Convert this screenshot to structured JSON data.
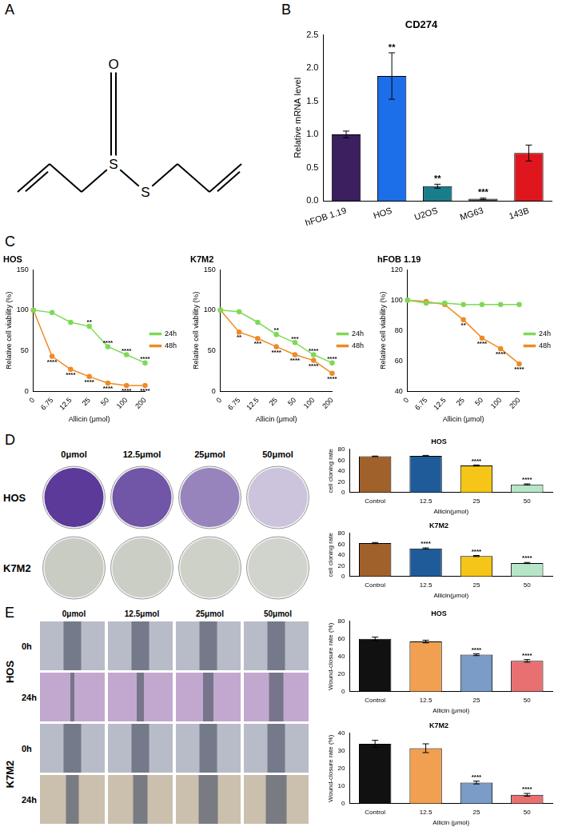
{
  "panel_letters": [
    "A",
    "B",
    "C",
    "D",
    "E"
  ],
  "structure": {
    "atoms": [
      "O",
      "S",
      "S"
    ]
  },
  "colony_images": {
    "columns": [
      "0μmol",
      "12.5μmol",
      "25μmol",
      "50μmol"
    ],
    "rows": [
      "HOS",
      "K7M2"
    ]
  },
  "wound_images": {
    "columns": [
      "0μmol",
      "12.5μmol",
      "25μmol",
      "50μmol"
    ],
    "cell_lines": [
      "HOS",
      "K7M2"
    ],
    "times": [
      "0h",
      "24h"
    ]
  },
  "chart_data": [
    {
      "type": "bar",
      "title": "CD274",
      "y_label": "Relative mRNA level",
      "categories": [
        "hFOB 1.19",
        "HOS",
        "U2OS",
        "MG63",
        "143B"
      ],
      "values": [
        1.0,
        1.88,
        0.22,
        0.03,
        0.72
      ],
      "errors": [
        0.05,
        0.35,
        0.03,
        0.01,
        0.12
      ],
      "annotations": [
        null,
        "**",
        "**",
        "***",
        null
      ],
      "colors": [
        "#3b1f5f",
        "#1c6fe8",
        "#1a7d8c",
        "#4a4a4a",
        "#e0161f"
      ],
      "ylim": [
        0,
        2.5
      ],
      "yticks": [
        {
          "value": 0,
          "label": "0.0"
        },
        {
          "value": 0.5,
          "label": "0.5"
        },
        {
          "value": 1,
          "label": "1.0"
        },
        {
          "value": 1.5,
          "label": "1.5"
        },
        {
          "value": 2,
          "label": "2.0"
        },
        {
          "value": 2.5,
          "label": "2.5"
        }
      ],
      "grid": false
    },
    {
      "type": "line",
      "title": "HOS",
      "x_label": "Allicin (μmol)",
      "y_label": "Relative cell viability (%)",
      "categories": [
        0,
        6.75,
        12.5,
        25,
        50,
        100,
        200
      ],
      "series": [
        {
          "name": "24h",
          "color": "#7ed957",
          "marker": "circle",
          "values": [
            100,
            97,
            85,
            80,
            55,
            45,
            35
          ],
          "annotations": [
            null,
            null,
            null,
            "**",
            "****",
            "****",
            "****"
          ]
        },
        {
          "name": "48h",
          "color": "#f08a24",
          "marker": "circle",
          "values": [
            100,
            43,
            27,
            18,
            10,
            7,
            7
          ],
          "annotations": [
            null,
            "****",
            "****",
            "****",
            "****",
            "****",
            "****"
          ]
        }
      ],
      "ylim": [
        0,
        150
      ],
      "yticks": [
        0,
        50,
        100,
        150
      ],
      "grid": false,
      "legend": "right"
    },
    {
      "type": "line",
      "title": "K7M2",
      "x_label": "Allicin (μmol)",
      "y_label": "Relative cell viability (%)",
      "categories": [
        0,
        6.75,
        12.5,
        25,
        50,
        100,
        200
      ],
      "series": [
        {
          "name": "24h",
          "color": "#7ed957",
          "marker": "circle",
          "values": [
            100,
            98,
            85,
            70,
            60,
            45,
            35
          ],
          "annotations": [
            null,
            null,
            null,
            "**",
            "***",
            "****",
            "****"
          ]
        },
        {
          "name": "48h",
          "color": "#f08a24",
          "marker": "circle",
          "values": [
            100,
            73,
            65,
            55,
            45,
            38,
            22
          ],
          "annotations": [
            null,
            "**",
            "***",
            "****",
            "****",
            "****",
            "****"
          ]
        }
      ],
      "ylim": [
        0,
        150
      ],
      "yticks": [
        0,
        50,
        100,
        150
      ],
      "grid": false,
      "legend": "right"
    },
    {
      "type": "line",
      "title": "hFOB 1.19",
      "x_label": "Allicin (μmol)",
      "y_label": "Relative cell viability (%)",
      "categories": [
        0,
        6.75,
        12.5,
        25,
        50,
        100,
        200
      ],
      "series": [
        {
          "name": "24h",
          "color": "#7ed957",
          "marker": "circle",
          "values": [
            100,
            98,
            98,
            97,
            97,
            97,
            97
          ],
          "annotations": [
            null,
            null,
            null,
            null,
            null,
            null,
            null
          ]
        },
        {
          "name": "48h",
          "color": "#f08a24",
          "marker": "circle",
          "values": [
            100,
            99,
            97,
            87,
            75,
            68,
            58
          ],
          "annotations": [
            null,
            null,
            null,
            "**",
            "****",
            "****",
            "****"
          ]
        }
      ],
      "ylim": [
        40,
        120
      ],
      "yticks": [
        40,
        60,
        80,
        100,
        120
      ],
      "grid": false,
      "legend": "right"
    },
    {
      "type": "bar",
      "title": "HOS",
      "x_label": "Allicin(μmol)",
      "y_label": "cell cloning rate",
      "categories": [
        "Control",
        "12.5",
        "25",
        "50"
      ],
      "values": [
        67,
        68,
        50,
        15
      ],
      "errors": [
        0.5,
        0.8,
        1,
        1
      ],
      "annotations": [
        null,
        null,
        "****",
        "****"
      ],
      "colors": [
        "#a0612a",
        "#1f5b99",
        "#f5c518",
        "#b5e6c8"
      ],
      "ylim": [
        0,
        80
      ],
      "yticks": [
        0,
        20,
        40,
        60,
        80
      ],
      "grid": false
    },
    {
      "type": "bar",
      "title": "K7M2",
      "x_label": "Allicin(μmol)",
      "y_label": "cell cloning rate",
      "categories": [
        "Control",
        "12.5",
        "25",
        "50"
      ],
      "values": [
        62,
        52,
        38,
        25
      ],
      "errors": [
        1,
        1,
        1,
        1
      ],
      "annotations": [
        null,
        "****",
        "****",
        "****"
      ],
      "colors": [
        "#a0612a",
        "#1f5b99",
        "#f5c518",
        "#b5e6c8"
      ],
      "ylim": [
        0,
        80
      ],
      "yticks": [
        0,
        20,
        40,
        60,
        80
      ],
      "grid": false
    },
    {
      "type": "bar",
      "title": "HOS",
      "x_label": "Allicin (μmol)",
      "y_label": "Wound-closure rate (%)",
      "categories": [
        "Control",
        "12.5",
        "25",
        "50"
      ],
      "values": [
        60,
        57,
        42,
        35
      ],
      "errors": [
        2,
        1.5,
        1,
        1.5
      ],
      "annotations": [
        null,
        null,
        "****",
        "****"
      ],
      "colors": [
        "#111111",
        "#f0a050",
        "#7a9cc6",
        "#e87070"
      ],
      "ylim": [
        0,
        80
      ],
      "yticks": [
        0,
        20,
        40,
        60,
        80
      ],
      "grid": false
    },
    {
      "type": "bar",
      "title": "K7M2",
      "x_label": "Allicin (μmol)",
      "y_label": "Wound-closure rate (%)",
      "categories": [
        "Control",
        "12.5",
        "25",
        "50"
      ],
      "values": [
        34,
        31.5,
        12,
        5
      ],
      "errors": [
        2,
        2.5,
        0.8,
        0.8
      ],
      "annotations": [
        null,
        null,
        "****",
        "****"
      ],
      "colors": [
        "#111111",
        "#f0a050",
        "#7a9cc6",
        "#e87070"
      ],
      "ylim": [
        0,
        40
      ],
      "yticks": [
        0,
        10,
        20,
        30,
        40
      ],
      "grid": false
    }
  ]
}
